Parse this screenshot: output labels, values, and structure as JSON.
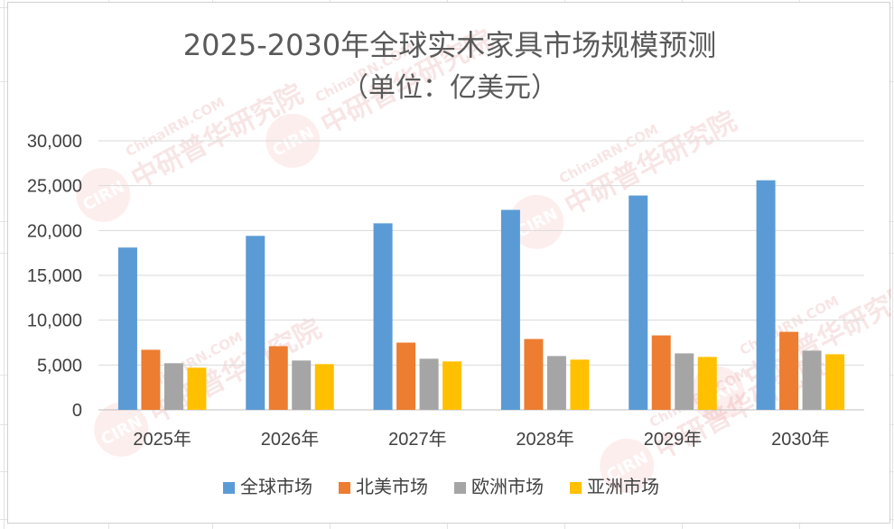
{
  "chart_data": {
    "type": "bar",
    "title": "2025-2030年全球实木家具市场规模预测",
    "subtitle": "（单位：亿美元）",
    "categories": [
      "2025年",
      "2026年",
      "2027年",
      "2028年",
      "2029年",
      "2030年"
    ],
    "series": [
      {
        "name": "全球市场",
        "color": "#5b9bd5",
        "values": [
          18100,
          19400,
          20800,
          22300,
          23900,
          25600
        ]
      },
      {
        "name": "北美市场",
        "color": "#ed7d31",
        "values": [
          6700,
          7100,
          7500,
          7900,
          8300,
          8700
        ]
      },
      {
        "name": "欧洲市场",
        "color": "#a5a5a5",
        "values": [
          5200,
          5500,
          5700,
          6000,
          6300,
          6600
        ]
      },
      {
        "name": "亚洲市场",
        "color": "#ffc000",
        "values": [
          4700,
          5100,
          5400,
          5600,
          5900,
          6200
        ]
      }
    ],
    "ylim": [
      0,
      30000
    ],
    "yticks": [
      "0",
      "5,000",
      "10,000",
      "15,000",
      "20,000",
      "25,000",
      "30,000"
    ],
    "xlabel": "",
    "ylabel": "",
    "grid": true,
    "legend_position": "bottom"
  },
  "watermark": {
    "brand_cn": "中研普华研究院",
    "brand_en": "ChinaIRN.COM",
    "logo_text": "CIRN",
    "logo_color": "#f08080"
  }
}
